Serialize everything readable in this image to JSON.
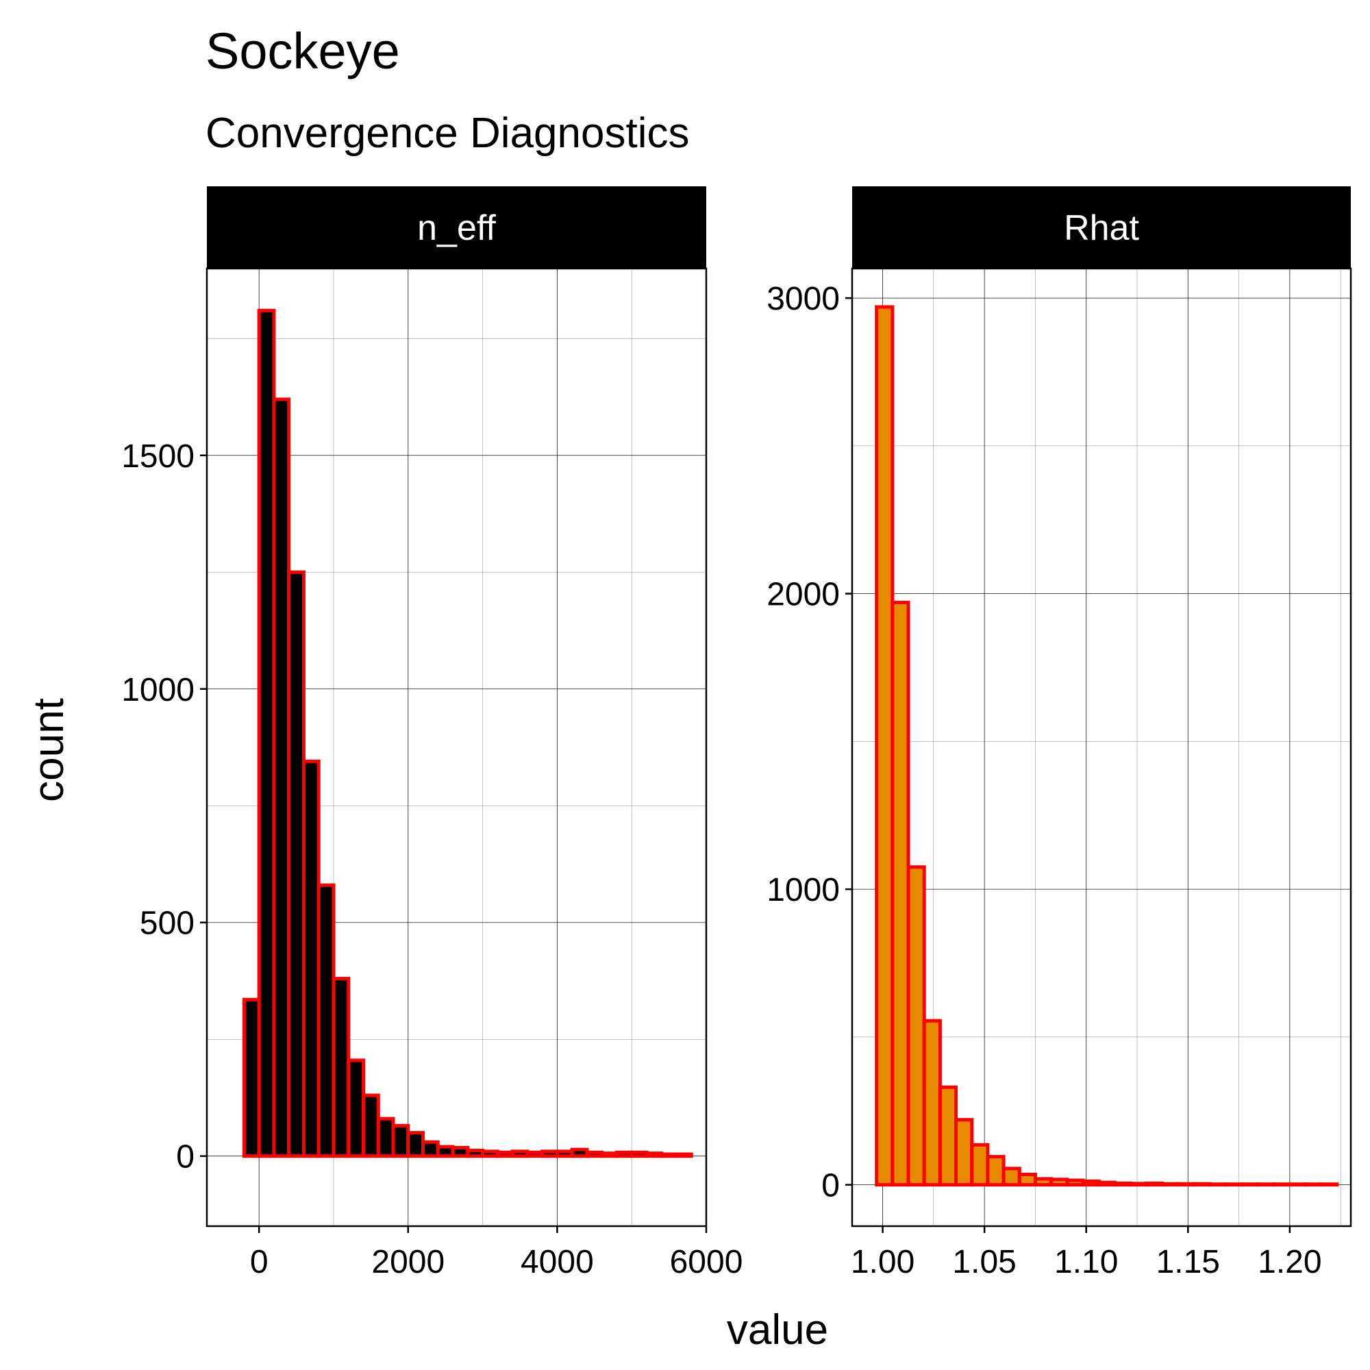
{
  "title": "Sockeye",
  "subtitle": "Convergence Diagnostics",
  "xlabel": "value",
  "ylabel": "count",
  "colors": {
    "outline": "#ff0000",
    "grid": "#000000",
    "strip_bg": "#000000",
    "strip_text": "#ffffff"
  },
  "chart_data": [
    {
      "type": "bar",
      "panel": "n_eff",
      "fill": "#000000",
      "xlim": [
        -700,
        6000
      ],
      "ylim": [
        -150,
        1900
      ],
      "x_ticks": [
        0,
        2000,
        4000,
        6000
      ],
      "y_ticks": [
        0,
        500,
        1000,
        1500
      ],
      "bin_width": 200,
      "bins": [
        {
          "x": -100,
          "count": 335
        },
        {
          "x": 100,
          "count": 1810
        },
        {
          "x": 300,
          "count": 1620
        },
        {
          "x": 500,
          "count": 1250
        },
        {
          "x": 700,
          "count": 845
        },
        {
          "x": 900,
          "count": 580
        },
        {
          "x": 1100,
          "count": 380
        },
        {
          "x": 1300,
          "count": 205
        },
        {
          "x": 1500,
          "count": 130
        },
        {
          "x": 1700,
          "count": 80
        },
        {
          "x": 1900,
          "count": 65
        },
        {
          "x": 2100,
          "count": 50
        },
        {
          "x": 2300,
          "count": 30
        },
        {
          "x": 2500,
          "count": 20
        },
        {
          "x": 2700,
          "count": 18
        },
        {
          "x": 2900,
          "count": 12
        },
        {
          "x": 3100,
          "count": 10
        },
        {
          "x": 3300,
          "count": 8
        },
        {
          "x": 3500,
          "count": 10
        },
        {
          "x": 3700,
          "count": 8
        },
        {
          "x": 3900,
          "count": 10
        },
        {
          "x": 4100,
          "count": 10
        },
        {
          "x": 4300,
          "count": 14
        },
        {
          "x": 4500,
          "count": 8
        },
        {
          "x": 4700,
          "count": 6
        },
        {
          "x": 4900,
          "count": 8
        },
        {
          "x": 5100,
          "count": 8
        },
        {
          "x": 5300,
          "count": 6
        },
        {
          "x": 5500,
          "count": 4
        },
        {
          "x": 5700,
          "count": 4
        }
      ]
    },
    {
      "type": "bar",
      "panel": "Rhat",
      "fill": "#e68a00",
      "xlim": [
        0.985,
        1.23
      ],
      "ylim": [
        -140,
        3100
      ],
      "x_ticks": [
        1.0,
        1.05,
        1.1,
        1.15,
        1.2
      ],
      "x_tick_labels": [
        "1.00",
        "1.05",
        "1.10",
        "1.15",
        "1.20"
      ],
      "y_ticks": [
        0,
        1000,
        2000,
        3000
      ],
      "bin_width": 0.0078,
      "bins": [
        {
          "x": 1.0009,
          "count": 2970
        },
        {
          "x": 1.0087,
          "count": 1970
        },
        {
          "x": 1.0165,
          "count": 1075
        },
        {
          "x": 1.0243,
          "count": 555
        },
        {
          "x": 1.0321,
          "count": 330
        },
        {
          "x": 1.0399,
          "count": 220
        },
        {
          "x": 1.0477,
          "count": 135
        },
        {
          "x": 1.0555,
          "count": 95
        },
        {
          "x": 1.0633,
          "count": 55
        },
        {
          "x": 1.0711,
          "count": 35
        },
        {
          "x": 1.0789,
          "count": 20
        },
        {
          "x": 1.0867,
          "count": 18
        },
        {
          "x": 1.0945,
          "count": 15
        },
        {
          "x": 1.1023,
          "count": 12
        },
        {
          "x": 1.1101,
          "count": 8
        },
        {
          "x": 1.1179,
          "count": 5
        },
        {
          "x": 1.1257,
          "count": 4
        },
        {
          "x": 1.1335,
          "count": 5
        },
        {
          "x": 1.1413,
          "count": 3
        },
        {
          "x": 1.1491,
          "count": 3
        },
        {
          "x": 1.1569,
          "count": 3
        },
        {
          "x": 1.1647,
          "count": 2
        },
        {
          "x": 1.1725,
          "count": 2
        },
        {
          "x": 1.1803,
          "count": 2
        },
        {
          "x": 1.1881,
          "count": 2
        },
        {
          "x": 1.1959,
          "count": 2
        },
        {
          "x": 1.2037,
          "count": 2
        },
        {
          "x": 1.2115,
          "count": 2
        },
        {
          "x": 1.2193,
          "count": 2
        }
      ]
    }
  ]
}
